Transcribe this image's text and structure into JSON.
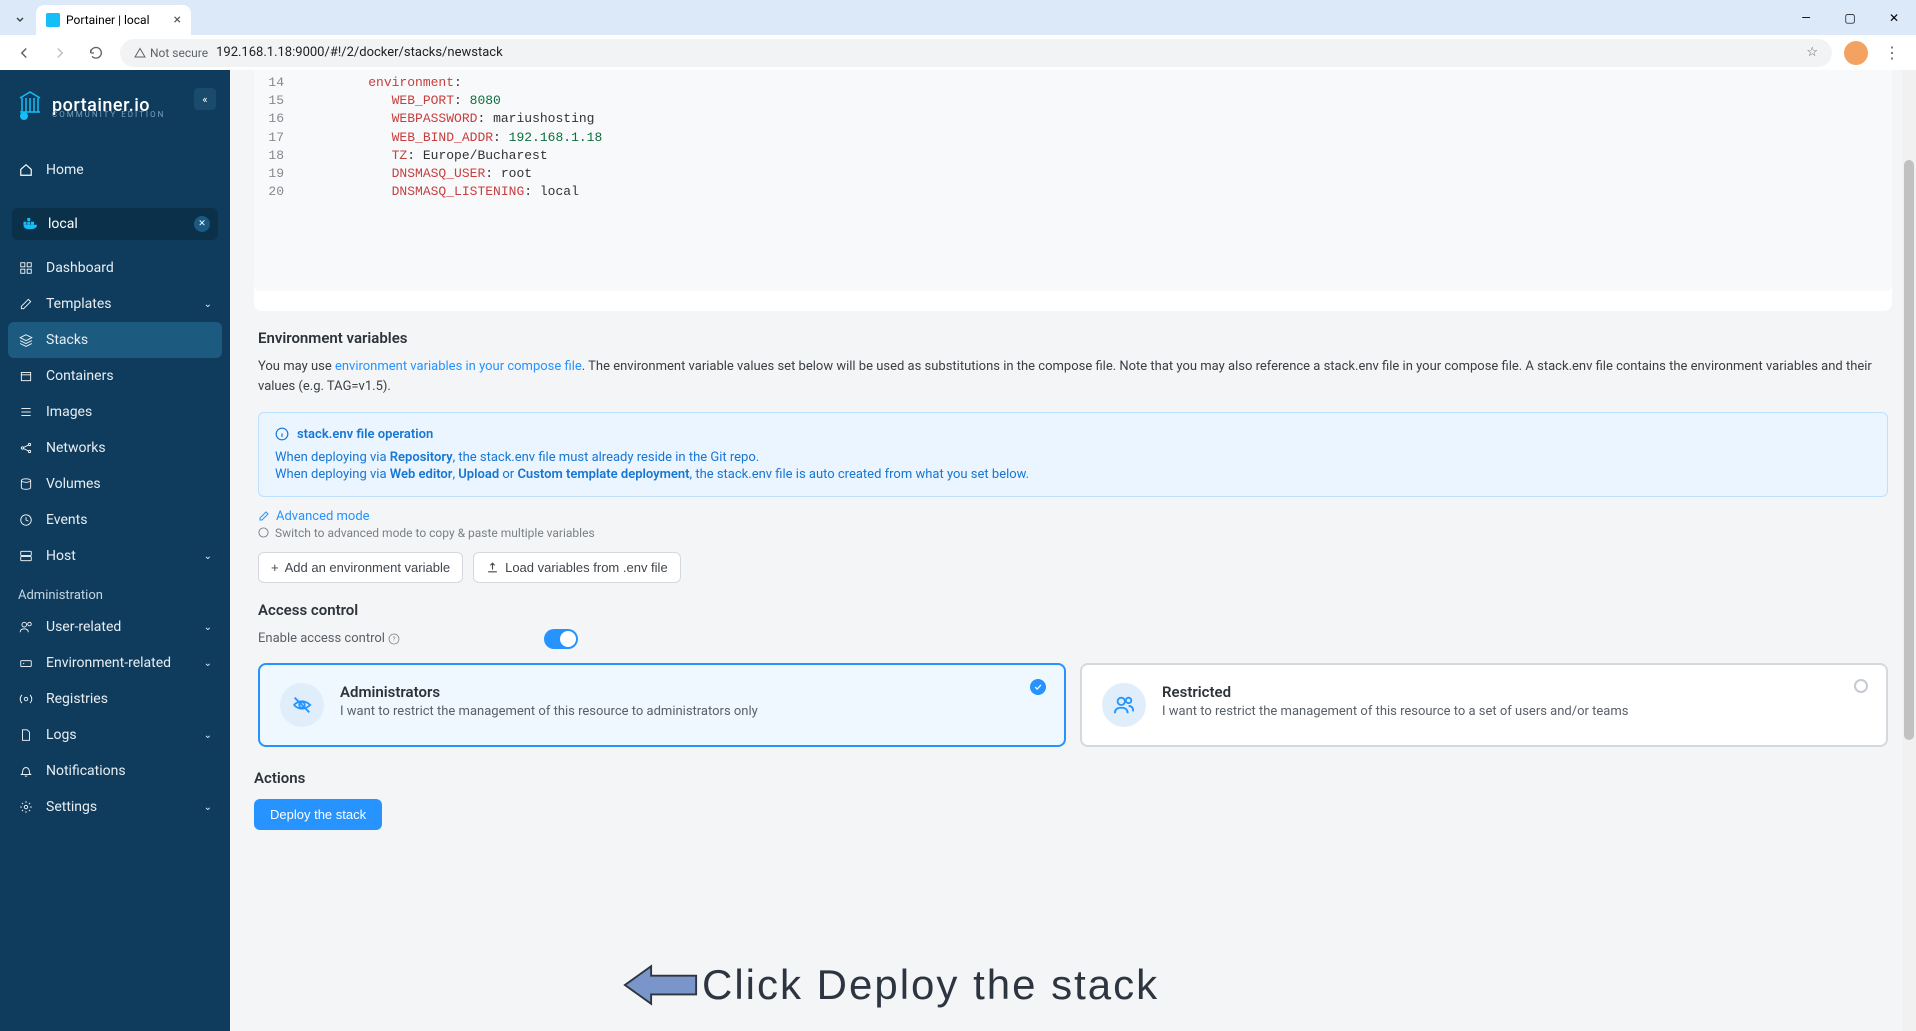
{
  "browser": {
    "tab_title": "Portainer | local",
    "url_security": "Not secure",
    "url": "192.168.1.18:9000/#!/2/docker/stacks/newstack"
  },
  "sidebar": {
    "logo_text": "portainer.io",
    "logo_sub": "COMMUNITY EDITION",
    "home": "Home",
    "env_name": "local",
    "items": [
      {
        "label": "Dashboard",
        "icon": "grid"
      },
      {
        "label": "Templates",
        "icon": "edit",
        "expandable": true
      },
      {
        "label": "Stacks",
        "icon": "layers",
        "active": true
      },
      {
        "label": "Containers",
        "icon": "box"
      },
      {
        "label": "Images",
        "icon": "list"
      },
      {
        "label": "Networks",
        "icon": "share"
      },
      {
        "label": "Volumes",
        "icon": "db"
      },
      {
        "label": "Events",
        "icon": "clock"
      },
      {
        "label": "Host",
        "icon": "server",
        "expandable": true
      }
    ],
    "admin_label": "Administration",
    "admin_items": [
      {
        "label": "User-related",
        "icon": "users",
        "expandable": true
      },
      {
        "label": "Environment-related",
        "icon": "hdd",
        "expandable": true
      },
      {
        "label": "Registries",
        "icon": "radio"
      },
      {
        "label": "Logs",
        "icon": "file",
        "expandable": true
      },
      {
        "label": "Notifications",
        "icon": "bell"
      },
      {
        "label": "Settings",
        "icon": "gear",
        "expandable": true
      }
    ]
  },
  "code": {
    "lines": [
      {
        "n": 14,
        "indent": 3,
        "key": "environment",
        "val": "",
        "colon_only": true
      },
      {
        "n": 15,
        "indent": 4,
        "key": "WEB_PORT",
        "val": "8080",
        "val_type": "str"
      },
      {
        "n": 16,
        "indent": 4,
        "key": "WEBPASSWORD",
        "val": "mariushosting",
        "val_type": "plain"
      },
      {
        "n": 17,
        "indent": 4,
        "key": "WEB_BIND_ADDR",
        "val": "192.168.1.18",
        "val_type": "str"
      },
      {
        "n": 18,
        "indent": 4,
        "key": "TZ",
        "val": "Europe/Bucharest",
        "val_type": "plain"
      },
      {
        "n": 19,
        "indent": 4,
        "key": "DNSMASQ_USER",
        "val": "root",
        "val_type": "plain"
      },
      {
        "n": 20,
        "indent": 4,
        "key": "DNSMASQ_LISTENING",
        "val": "local",
        "val_type": "plain"
      }
    ]
  },
  "env_section": {
    "title": "Environment variables",
    "help_prefix": "You may use ",
    "help_link": "environment variables in your compose file",
    "help_suffix": ". The environment variable values set below will be used as substitutions in the compose file. Note that you may also reference a stack.env file in your compose file. A stack.env file contains the environment variables and their values (e.g. TAG=v1.5).",
    "info_title": "stack.env file operation",
    "info_line1_a": "When deploying via ",
    "info_line1_b": "Repository",
    "info_line1_c": ", the stack.env file must already reside in the Git repo.",
    "info_line2_a": "When deploying via ",
    "info_line2_b": "Web editor",
    "info_line2_c": ", ",
    "info_line2_d": "Upload",
    "info_line2_e": " or ",
    "info_line2_f": "Custom template deployment",
    "info_line2_g": ", the stack.env file is auto created from what you set below.",
    "advanced_label": "Advanced mode",
    "advanced_hint": "Switch to advanced mode to copy & paste multiple variables",
    "add_btn": "Add an environment variable",
    "load_btn": "Load variables from .env file"
  },
  "access": {
    "title": "Access control",
    "label": "Enable access control",
    "admin_title": "Administrators",
    "admin_desc": "I want to restrict the management of this resource to administrators only",
    "restricted_title": "Restricted",
    "restricted_desc": "I want to restrict the management of this resource to a set of users and/or teams"
  },
  "actions": {
    "title": "Actions",
    "deploy": "Deploy the stack"
  },
  "annotation": {
    "text": "Click Deploy the stack"
  },
  "colors": {
    "sidebar_bg": "#0f3c5c",
    "accent": "#2693ff",
    "info_bg": "#eaf5ff",
    "info_border": "#bde0ff"
  }
}
